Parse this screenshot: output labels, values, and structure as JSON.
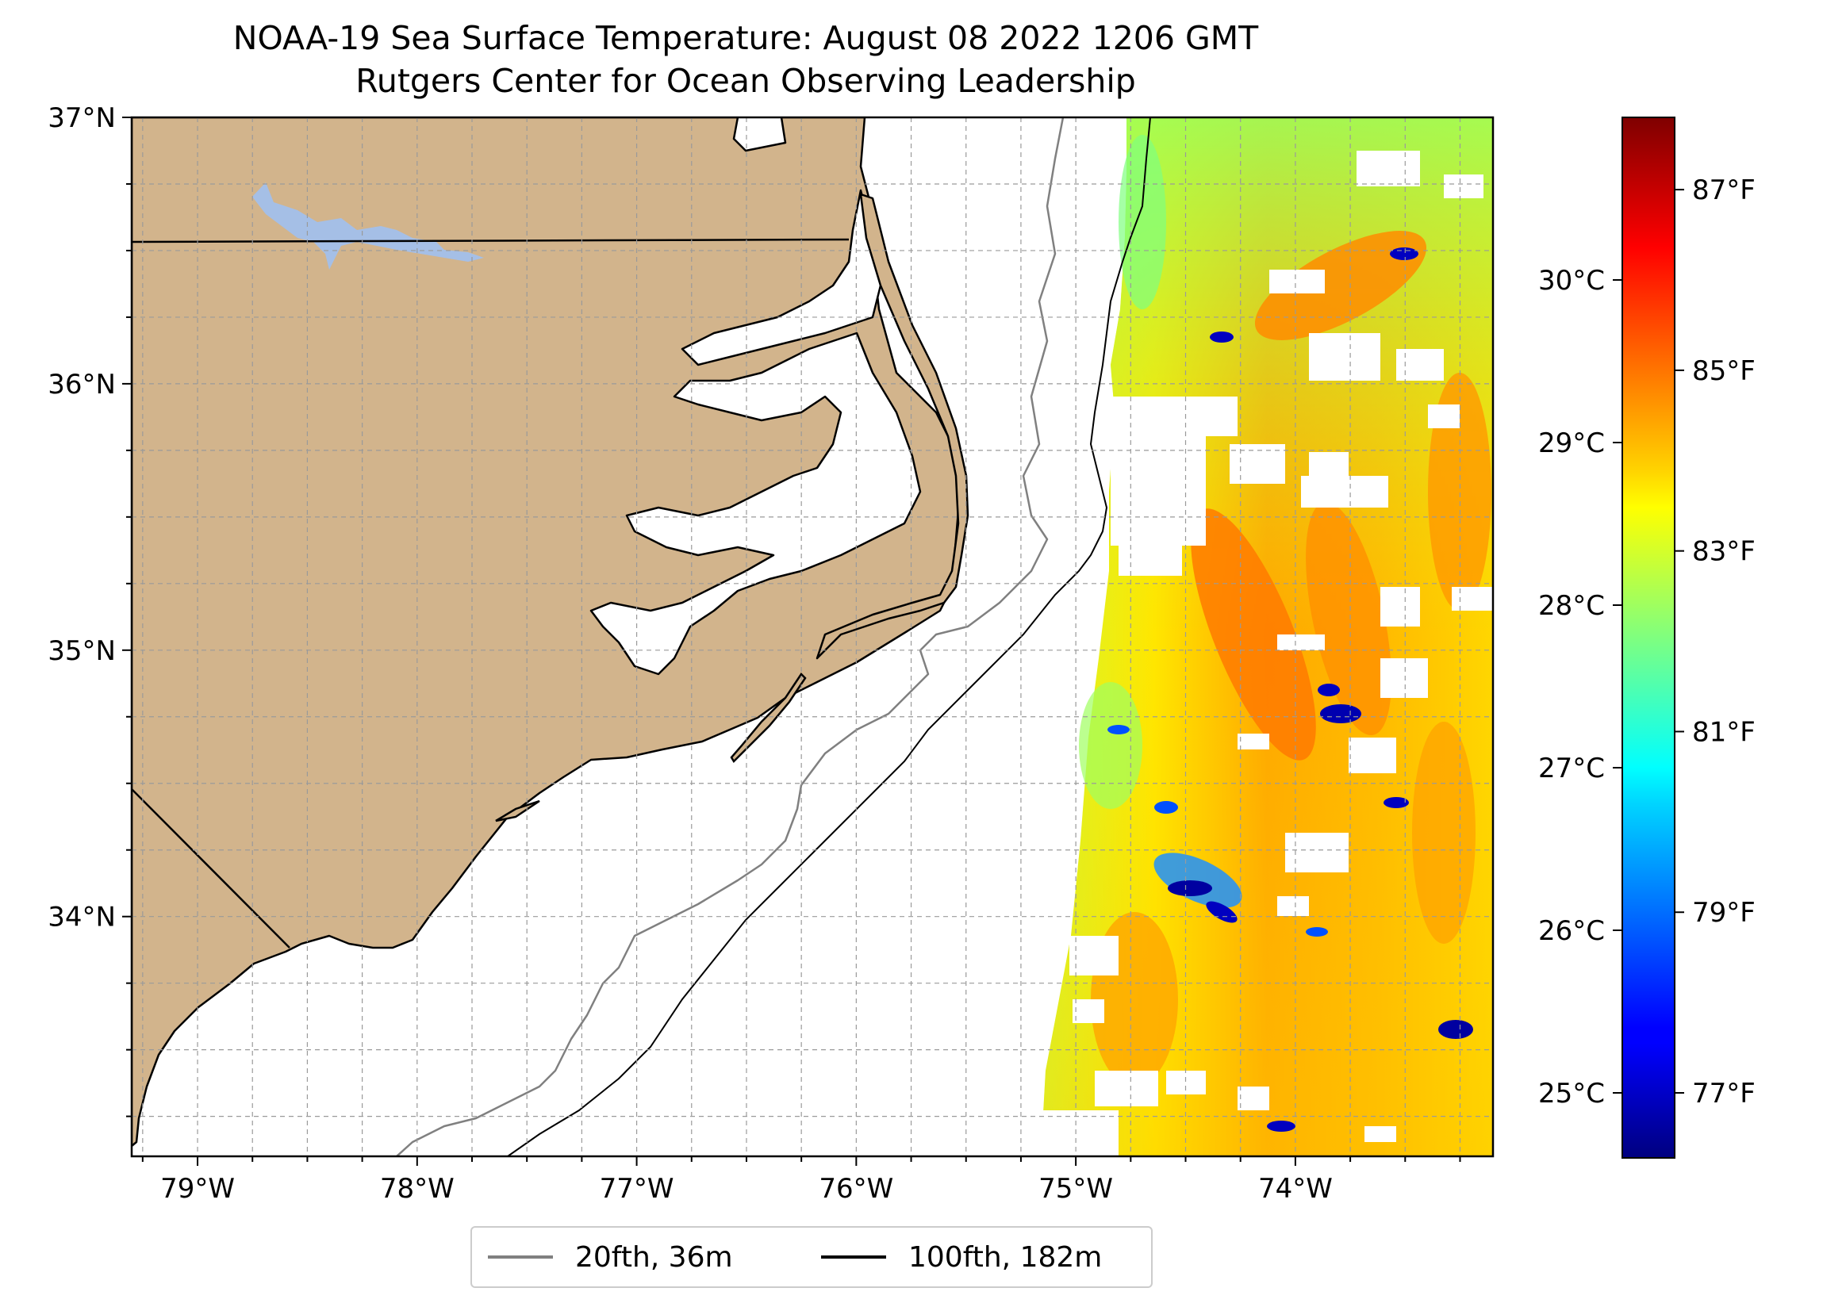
{
  "title_line1": "NOAA-19 Sea Surface Temperature: August 08 2022 1206 GMT",
  "title_line2": "Rutgers Center for Ocean Observing Leadership",
  "map": {
    "lon_range": [
      -79.3,
      -73.1
    ],
    "lat_range": [
      33.1,
      37.0
    ],
    "lon_tick_labels": [
      {
        "lon": -79,
        "label": "79°W"
      },
      {
        "lon": -78,
        "label": "78°W"
      },
      {
        "lon": -77,
        "label": "77°W"
      },
      {
        "lon": -76,
        "label": "76°W"
      },
      {
        "lon": -75,
        "label": "75°W"
      },
      {
        "lon": -74,
        "label": "74°W"
      }
    ],
    "lat_tick_labels": [
      {
        "lat": 37,
        "label": "37°N"
      },
      {
        "lat": 36,
        "label": "36°N"
      },
      {
        "lat": 35,
        "label": "35°N"
      },
      {
        "lat": 34,
        "label": "34°N"
      }
    ],
    "gridlines": "dashed, every 0.25°",
    "land_color": "#d2b48c",
    "water_body_color": "#a5bfe6"
  },
  "colorbar": {
    "colormap": "jet",
    "celsius_range": [
      24.6,
      31.0
    ],
    "celsius_ticks": [
      {
        "value": 25,
        "label": "25°C"
      },
      {
        "value": 26,
        "label": "26°C"
      },
      {
        "value": 27,
        "label": "27°C"
      },
      {
        "value": 28,
        "label": "28°C"
      },
      {
        "value": 29,
        "label": "29°C"
      },
      {
        "value": 30,
        "label": "30°C"
      }
    ],
    "fahrenheit_ticks": [
      {
        "value": 77,
        "label": "77°F"
      },
      {
        "value": 79,
        "label": "79°F"
      },
      {
        "value": 81,
        "label": "81°F"
      },
      {
        "value": 83,
        "label": "83°F"
      },
      {
        "value": 85,
        "label": "85°F"
      },
      {
        "value": 87,
        "label": "87°F"
      }
    ]
  },
  "legend": {
    "items": [
      {
        "label": "20fth, 36m",
        "color": "#808080"
      },
      {
        "label": "100fth, 182m",
        "color": "#000000"
      }
    ]
  }
}
